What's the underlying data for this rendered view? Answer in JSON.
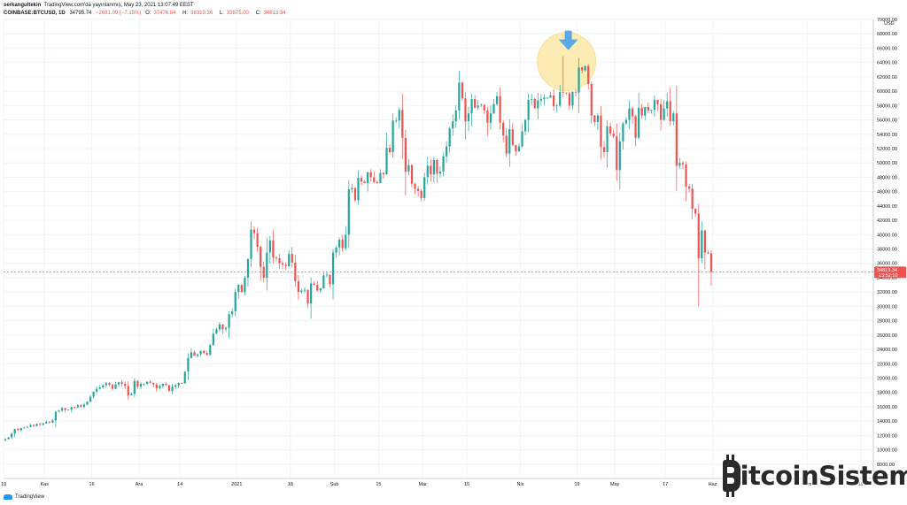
{
  "header": {
    "author": "serkangultekin",
    "published": "TradingView.com'da yayınlanmış, May 23, 2021 13:07:49 EEST",
    "symbol": "COINBASE:BTCUSD, 1D",
    "last": "34795.74",
    "change": "−2681.09 (−7.15%)",
    "o_label": "O:",
    "o_value": "37476.84",
    "h_label": "H:",
    "h_value": "38319.36",
    "l_label": "L:",
    "l_value": "33875.00",
    "c_label": "C:",
    "c_value": "34813.34"
  },
  "footer": {
    "logo_text": "TradingView"
  },
  "watermark": {
    "text": "BitcoinSistemi"
  },
  "colors": {
    "up": "#26a69a",
    "down": "#ef5350",
    "grid": "#f0f3fa",
    "highlight": "#fce9a8",
    "arrow": "#5aa9e6",
    "price_label": "#ef5350"
  },
  "chart_data": {
    "type": "candlestick",
    "title": "",
    "xlabel": "",
    "ylabel": "",
    "currency_label": "USD",
    "ylim": [
      6000,
      70000
    ],
    "y_ticks": [
      8000,
      10000,
      12000,
      14000,
      16000,
      18000,
      20000,
      22000,
      24000,
      26000,
      28000,
      30000,
      32000,
      34000,
      36000,
      38000,
      40000,
      42000,
      44000,
      46000,
      48000,
      50000,
      52000,
      54000,
      56000,
      58000,
      60000,
      62000,
      64000,
      66000,
      68000,
      70000
    ],
    "x_labels": [
      {
        "label": "19",
        "day": 0
      },
      {
        "label": "Kas",
        "day": 13
      },
      {
        "label": "16",
        "day": 28
      },
      {
        "label": "Ara",
        "day": 43
      },
      {
        "label": "14",
        "day": 56
      },
      {
        "label": "2021",
        "day": 74
      },
      {
        "label": "18",
        "day": 91
      },
      {
        "label": "Şub",
        "day": 105
      },
      {
        "label": "15",
        "day": 119
      },
      {
        "label": "Mar",
        "day": 133
      },
      {
        "label": "15",
        "day": 147
      },
      {
        "label": "Nis",
        "day": 164
      },
      {
        "label": "19",
        "day": 182
      },
      {
        "label": "May",
        "day": 194
      },
      {
        "label": "17",
        "day": 210
      },
      {
        "label": "Haz",
        "day": 225
      },
      {
        "label": "Tem",
        "day": 255
      },
      {
        "label": "19",
        "day": 272
      }
    ],
    "x_range_days": [
      0,
      276
    ],
    "current_price": {
      "value": 34813.34,
      "label": "34813.34",
      "countdown": "13:52:10"
    },
    "highlight": {
      "day": 175,
      "price": 64000
    },
    "closes": [
      11500,
      11750,
      12250,
      12900,
      12750,
      13000,
      13100,
      13200,
      13450,
      13300,
      13600,
      13500,
      13700,
      13900,
      13800,
      14100,
      15300,
      15450,
      15800,
      15550,
      15600,
      15950,
      15900,
      16200,
      16000,
      16300,
      16700,
      17400,
      18100,
      18500,
      18700,
      19000,
      19300,
      19050,
      18500,
      19100,
      19400,
      19200,
      18900,
      17600,
      17800,
      19600,
      18800,
      19200,
      19200,
      19500,
      19350,
      19100,
      18600,
      18900,
      19200,
      19000,
      18200,
      18800,
      19000,
      19300,
      19250,
      20900,
      22800,
      23600,
      23100,
      23300,
      23800,
      23500,
      23200,
      24600,
      26200,
      26800,
      27500,
      26800,
      27000,
      28900,
      29300,
      32000,
      33000,
      32000,
      34000,
      36600,
      40700,
      40200,
      38300,
      35500,
      34000,
      37500,
      39200,
      36800,
      36700,
      36000,
      35800,
      35600,
      37300,
      36100,
      33500,
      32000,
      32200,
      32300,
      30400,
      33200,
      33000,
      32200,
      32500,
      34300,
      34400,
      33100,
      37500,
      38200,
      39300,
      38100,
      40000,
      46300,
      46500,
      44800,
      47900,
      47400,
      47200,
      48700,
      48000,
      47300,
      47200,
      48600,
      48400,
      52100,
      51500,
      55900,
      55900,
      57400,
      53500,
      48800,
      49700,
      47100,
      46400,
      46100,
      45100,
      48000,
      49600,
      48400,
      50400,
      48500,
      48800,
      50900,
      52300,
      54800,
      55800,
      57300,
      61200,
      59000,
      55800,
      56900,
      58900,
      57700,
      58000,
      58100,
      57300,
      55600,
      56900,
      58200,
      59300,
      55600,
      53800,
      51300,
      54700,
      52500,
      51600,
      52300,
      54400,
      56000,
      58800,
      58900,
      57600,
      58700,
      58900,
      59100,
      59100,
      59400,
      57900,
      58000,
      59900,
      59800,
      59700,
      58000,
      59900,
      59800,
      63300,
      62900,
      63500,
      61000,
      56600,
      55700,
      56600,
      52200,
      51500,
      55100,
      54100,
      53700,
      49000,
      53000,
      55500,
      56000,
      57600,
      56500,
      53500,
      57700,
      56600,
      57800,
      57300,
      57400,
      58800,
      58200,
      56000,
      57600,
      58600,
      55800,
      56900,
      49600,
      50000,
      49800,
      46700,
      46400,
      43600,
      42900,
      36700,
      40600,
      37500,
      37400,
      34800
    ]
  }
}
